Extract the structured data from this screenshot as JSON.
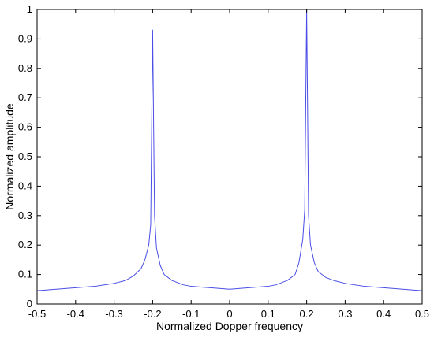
{
  "chart_data": {
    "type": "line",
    "title": "",
    "xlabel": "Normalized Dopper frequency",
    "ylabel": "Normalized amplitude",
    "xlim": [
      -0.5,
      0.5
    ],
    "ylim": [
      0,
      1
    ],
    "xticks": [
      -0.5,
      -0.4,
      -0.3,
      -0.2,
      -0.1,
      0,
      0.1,
      0.2,
      0.3,
      0.4,
      0.5
    ],
    "xtick_labels": [
      "-0.5",
      "-0.4",
      "-0.3",
      "-0.2",
      "-0.1",
      "0",
      "0.1",
      "0.2",
      "0.3",
      "0.4",
      "0.5"
    ],
    "yticks": [
      0,
      0.1,
      0.2,
      0.3,
      0.4,
      0.5,
      0.6,
      0.7,
      0.8,
      0.9,
      1
    ],
    "ytick_labels": [
      "0",
      "0.1",
      "0.2",
      "0.3",
      "0.4",
      "0.5",
      "0.6",
      "0.7",
      "0.8",
      "0.9",
      "1"
    ],
    "grid": false,
    "line_color": "#4a4ee6",
    "series": [
      {
        "x": [
          -0.5,
          -0.45,
          -0.4,
          -0.35,
          -0.3,
          -0.27,
          -0.25,
          -0.23,
          -0.22,
          -0.21,
          -0.205,
          -0.2,
          -0.195,
          -0.19,
          -0.18,
          -0.17,
          -0.15,
          -0.12,
          -0.1,
          -0.05,
          0,
          0.05,
          0.1,
          0.12,
          0.15,
          0.17,
          0.18,
          0.19,
          0.195,
          0.2,
          0.205,
          0.21,
          0.22,
          0.23,
          0.25,
          0.27,
          0.3,
          0.35,
          0.4,
          0.45,
          0.5
        ],
        "y": [
          0.045,
          0.05,
          0.055,
          0.06,
          0.07,
          0.08,
          0.095,
          0.12,
          0.15,
          0.2,
          0.27,
          0.93,
          0.3,
          0.19,
          0.13,
          0.1,
          0.08,
          0.065,
          0.06,
          0.055,
          0.05,
          0.055,
          0.06,
          0.065,
          0.08,
          0.1,
          0.14,
          0.22,
          0.32,
          1.0,
          0.3,
          0.2,
          0.14,
          0.11,
          0.09,
          0.08,
          0.07,
          0.06,
          0.055,
          0.05,
          0.045
        ]
      }
    ]
  }
}
